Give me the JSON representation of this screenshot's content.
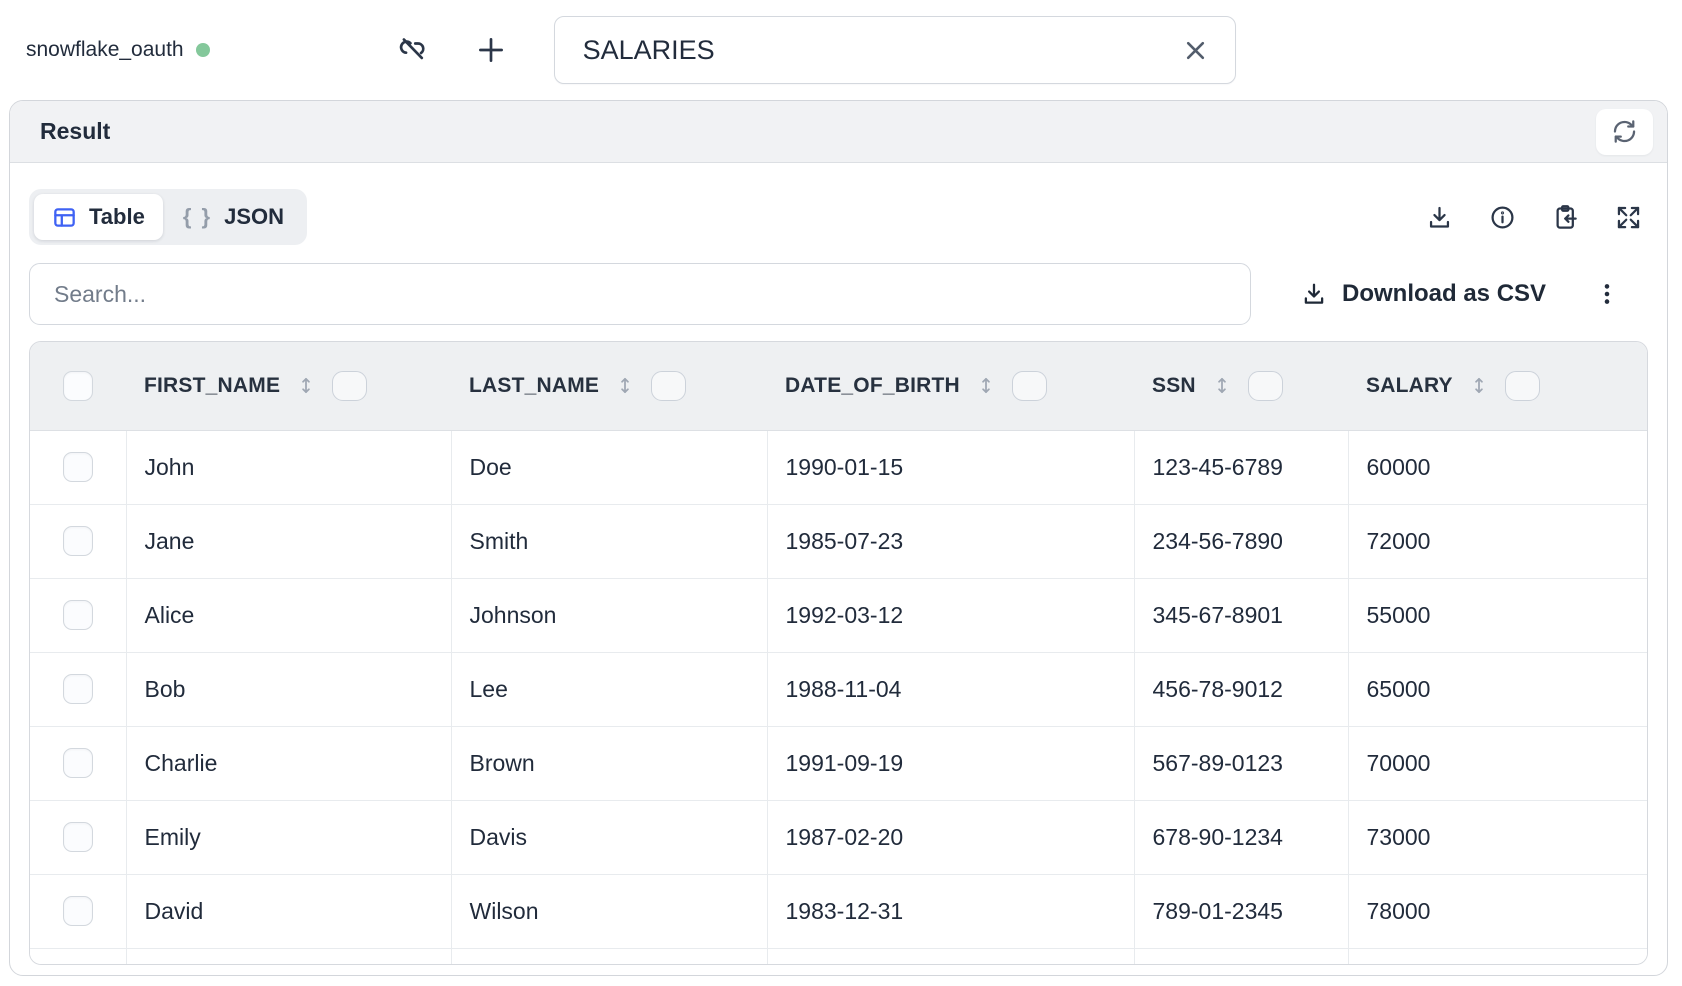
{
  "connection": {
    "name": "snowflake_oauth",
    "status_color": "#84c89b"
  },
  "topbar": {
    "query_name_value": "SALARIES"
  },
  "result_panel": {
    "title": "Result"
  },
  "view_tabs": {
    "table_label": "Table",
    "json_label": "JSON",
    "braces_glyph": "{ }",
    "active": "Table"
  },
  "toolbar": {
    "search_placeholder": "Search...",
    "download_csv_label": "Download as CSV"
  },
  "table": {
    "columns": [
      "FIRST_NAME",
      "LAST_NAME",
      "DATE_OF_BIRTH",
      "SSN",
      "SALARY"
    ],
    "rows": [
      [
        "John",
        "Doe",
        "1990-01-15",
        "123-45-6789",
        "60000"
      ],
      [
        "Jane",
        "Smith",
        "1985-07-23",
        "234-56-7890",
        "72000"
      ],
      [
        "Alice",
        "Johnson",
        "1992-03-12",
        "345-67-8901",
        "55000"
      ],
      [
        "Bob",
        "Lee",
        "1988-11-04",
        "456-78-9012",
        "65000"
      ],
      [
        "Charlie",
        "Brown",
        "1991-09-19",
        "567-89-0123",
        "70000"
      ],
      [
        "Emily",
        "Davis",
        "1987-02-20",
        "678-90-1234",
        "73000"
      ],
      [
        "David",
        "Wilson",
        "1983-12-31",
        "789-01-2345",
        "78000"
      ]
    ]
  },
  "colors": {
    "accent_blue": "#3f62f4"
  }
}
